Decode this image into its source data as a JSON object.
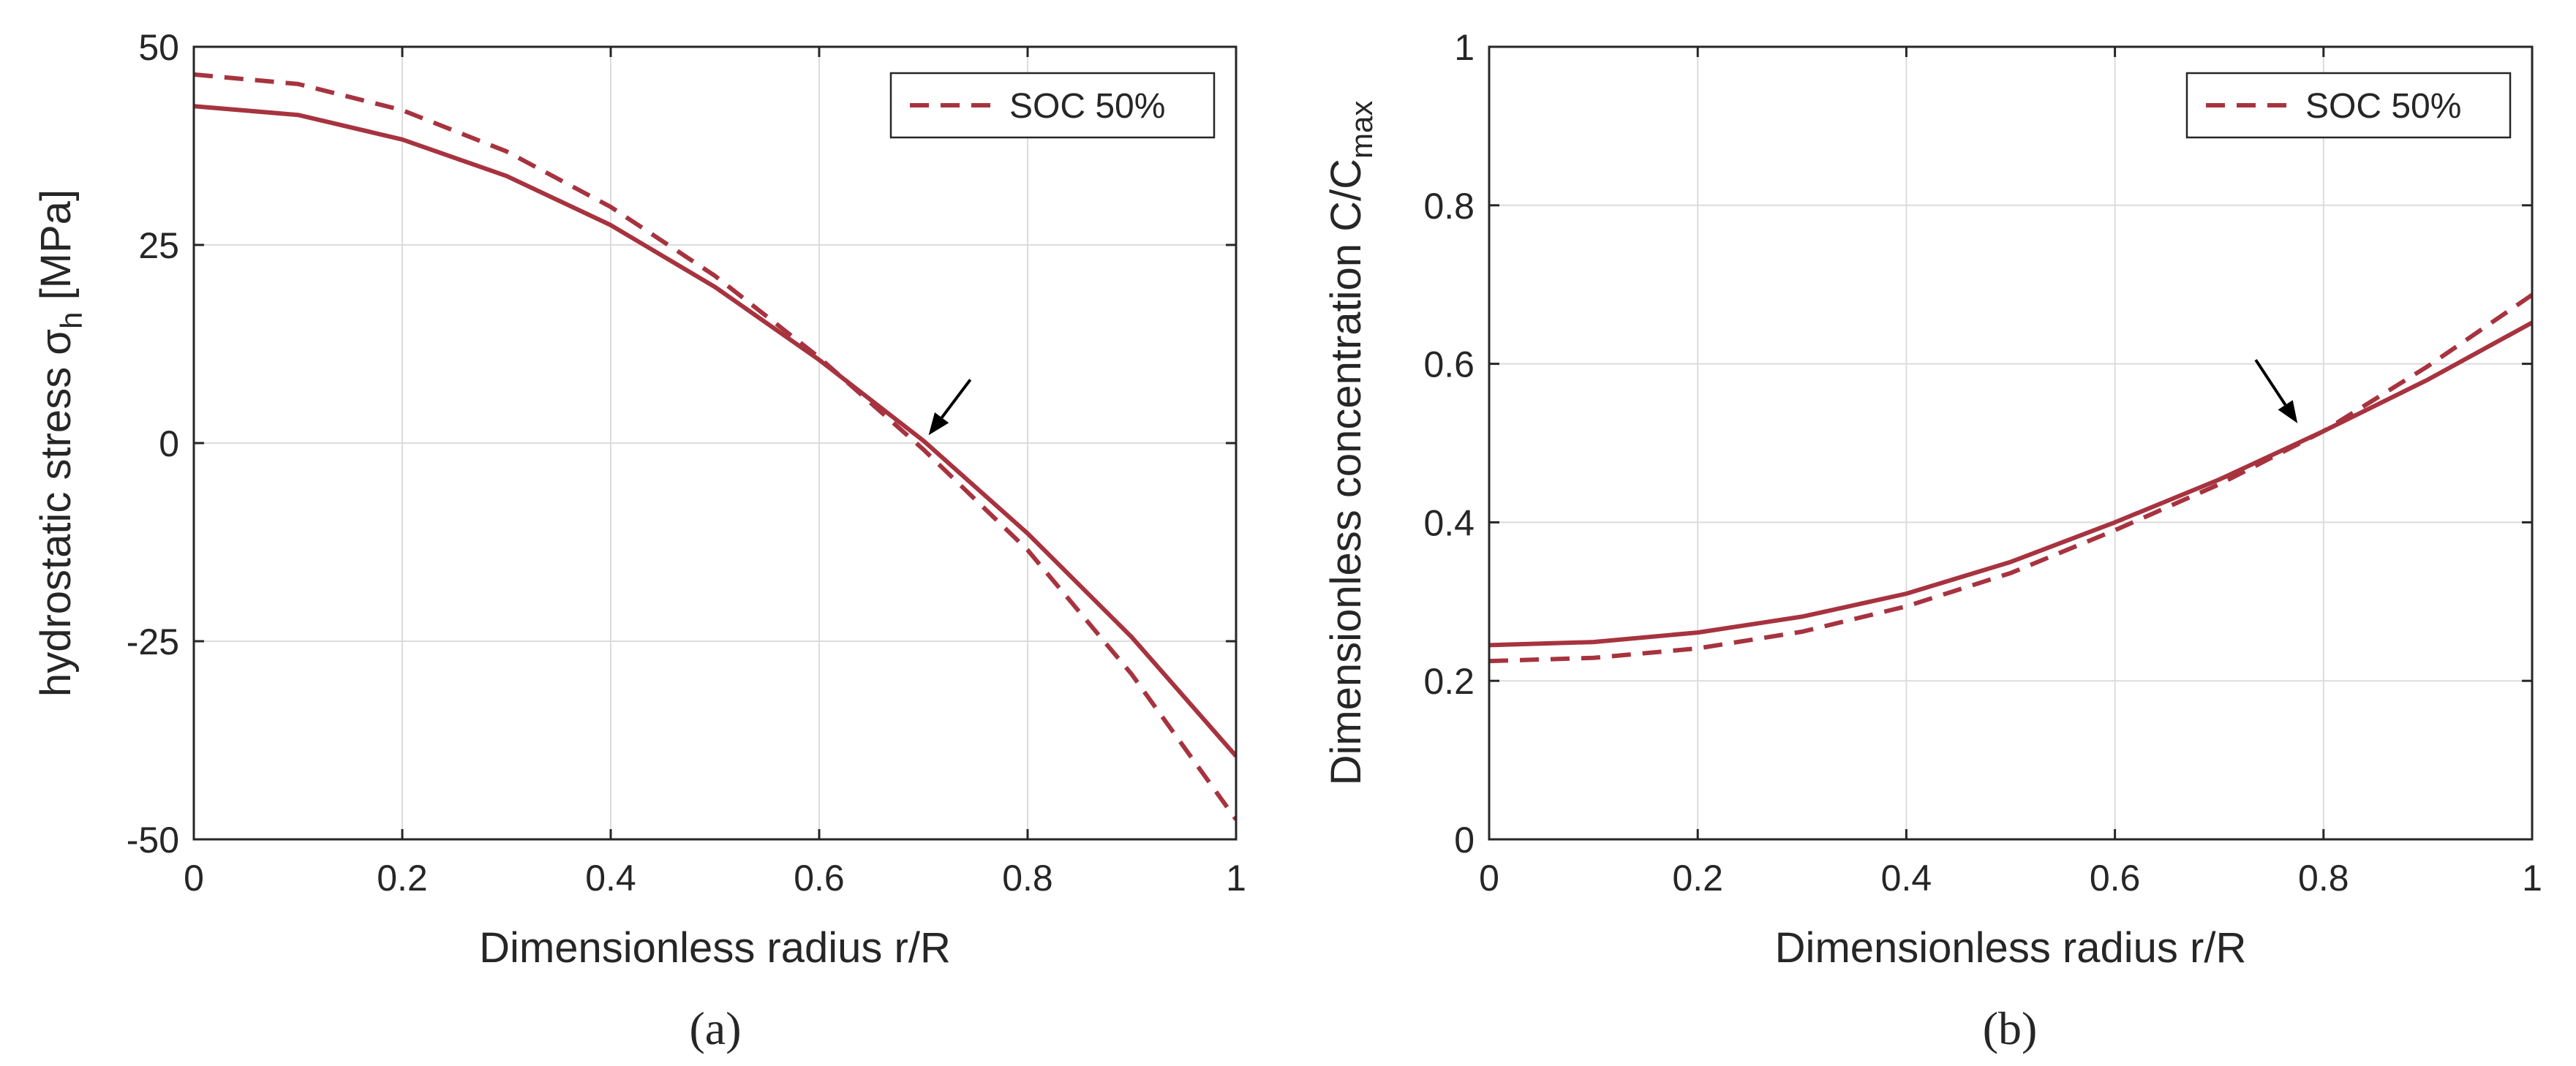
{
  "colors": {
    "curve": "#A7333F",
    "grid": "#dcdcdc",
    "axis": "#262626",
    "arrow": "#000000"
  },
  "chart_data": [
    {
      "id": "a",
      "type": "line",
      "caption": "(a)",
      "xlabel": "Dimensionless radius r/R",
      "ylabel_main": "hydrostatic stress σ",
      "ylabel_sub": "h",
      "ylabel_unit": "[MPa]",
      "xlim": [
        0,
        1
      ],
      "ylim": [
        -50,
        50
      ],
      "xticks": [
        0,
        0.2,
        0.4,
        0.6,
        0.8,
        1
      ],
      "xtick_labels": [
        "0",
        "0.2",
        "0.4",
        "0.6",
        "0.8",
        "1"
      ],
      "yticks": [
        -50,
        -25,
        0,
        25,
        50
      ],
      "ytick_labels": [
        "-50",
        "-25",
        "0",
        "25",
        "50"
      ],
      "grid": true,
      "legend": {
        "position": "top-right",
        "entries": [
          "SOC 50%"
        ]
      },
      "series": [
        {
          "name": "solid",
          "style": "solid",
          "in_legend": false,
          "x": [
            0,
            0.1,
            0.2,
            0.3,
            0.4,
            0.5,
            0.6,
            0.7,
            0.8,
            0.9,
            1.0
          ],
          "y": [
            42.5,
            41.4,
            38.3,
            33.7,
            27.5,
            19.7,
            10.5,
            0.3,
            -11.4,
            -24.5,
            -39.5
          ]
        },
        {
          "name": "SOC 50%",
          "style": "dashed",
          "in_legend": true,
          "x": [
            0,
            0.1,
            0.2,
            0.3,
            0.4,
            0.5,
            0.6,
            0.7,
            0.8,
            0.9,
            1.0
          ],
          "y": [
            46.5,
            45.3,
            42.0,
            36.8,
            29.8,
            21.1,
            10.8,
            -0.8,
            -13.5,
            -29.2,
            -47.5
          ]
        }
      ],
      "annotations": [
        {
          "type": "arrow",
          "from": [
            0.745,
            8.0
          ],
          "to": [
            0.705,
            1.0
          ]
        }
      ]
    },
    {
      "id": "b",
      "type": "line",
      "caption": "(b)",
      "xlabel": "Dimensionless radius r/R",
      "ylabel_main": "Dimensionless concentration C/C",
      "ylabel_sub": "max",
      "ylabel_unit": "",
      "xlim": [
        0,
        1
      ],
      "ylim": [
        0,
        1
      ],
      "xticks": [
        0,
        0.2,
        0.4,
        0.6,
        0.8,
        1
      ],
      "xtick_labels": [
        "0",
        "0.2",
        "0.4",
        "0.6",
        "0.8",
        "1"
      ],
      "yticks": [
        0,
        0.2,
        0.4,
        0.6,
        0.8,
        1
      ],
      "ytick_labels": [
        "0",
        "0.2",
        "0.4",
        "0.6",
        "0.8",
        "1"
      ],
      "grid": true,
      "legend": {
        "position": "top-right",
        "entries": [
          "SOC 50%"
        ]
      },
      "series": [
        {
          "name": "solid",
          "style": "solid",
          "in_legend": false,
          "x": [
            0,
            0.1,
            0.2,
            0.3,
            0.4,
            0.5,
            0.6,
            0.7,
            0.8,
            0.9,
            1.0
          ],
          "y": [
            0.245,
            0.249,
            0.261,
            0.281,
            0.31,
            0.35,
            0.4,
            0.454,
            0.515,
            0.58,
            0.652
          ]
        },
        {
          "name": "SOC 50%",
          "style": "dashed",
          "in_legend": true,
          "x": [
            0,
            0.1,
            0.2,
            0.3,
            0.4,
            0.5,
            0.6,
            0.7,
            0.8,
            0.9,
            1.0
          ],
          "y": [
            0.225,
            0.229,
            0.241,
            0.262,
            0.294,
            0.336,
            0.39,
            0.448,
            0.515,
            0.597,
            0.687
          ]
        }
      ],
      "annotations": [
        {
          "type": "arrow",
          "from": [
            0.735,
            0.605
          ],
          "to": [
            0.775,
            0.525
          ]
        }
      ]
    }
  ]
}
